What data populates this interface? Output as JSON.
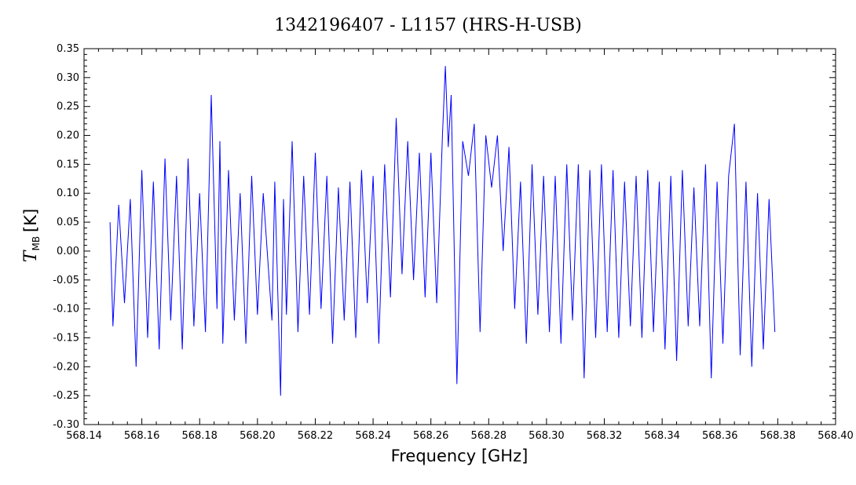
{
  "chart_data": {
    "type": "line",
    "title": "1342196407 - L1157 (HRS-H-USB)",
    "xlabel": "Frequency [GHz]",
    "ylabel": {
      "symbol": "T",
      "subscript": "MB",
      "unit": "[K]"
    },
    "xlim": [
      568.14,
      568.4
    ],
    "ylim": [
      -0.3,
      0.35
    ],
    "xticks": [
      568.14,
      568.16,
      568.18,
      568.2,
      568.22,
      568.24,
      568.26,
      568.28,
      568.3,
      568.32,
      568.34,
      568.36,
      568.38,
      568.4
    ],
    "xtick_labels": [
      "568.14",
      "568.16",
      "568.18",
      "568.20",
      "568.22",
      "568.24",
      "568.26",
      "568.28",
      "568.30",
      "568.32",
      "568.34",
      "568.36",
      "568.38",
      "568.40"
    ],
    "yticks": [
      -0.3,
      -0.25,
      -0.2,
      -0.15,
      -0.1,
      -0.05,
      0.0,
      0.05,
      0.1,
      0.15,
      0.2,
      0.25,
      0.3,
      0.35
    ],
    "ytick_labels": [
      "-0.30",
      "-0.25",
      "-0.20",
      "-0.15",
      "-0.10",
      "-0.05",
      "0.00",
      "0.05",
      "0.10",
      "0.15",
      "0.20",
      "0.25",
      "0.30",
      "0.35"
    ],
    "grid": false,
    "line_color": "#0000ff",
    "series": [
      {
        "x": [
          568.149,
          568.15,
          568.152,
          568.154,
          568.156,
          568.158,
          568.16,
          568.162,
          568.164,
          568.166,
          568.168,
          568.17,
          568.172,
          568.174,
          568.176,
          568.178,
          568.18,
          568.182,
          568.184,
          568.186,
          568.187,
          568.188,
          568.19,
          568.192,
          568.194,
          568.196,
          568.198,
          568.2,
          568.202,
          568.205,
          568.206,
          568.208,
          568.209,
          568.21,
          568.212,
          568.214,
          568.216,
          568.218,
          568.22,
          568.222,
          568.224,
          568.226,
          568.228,
          568.23,
          568.232,
          568.234,
          568.236,
          568.238,
          568.24,
          568.242,
          568.244,
          568.246,
          568.248,
          568.25,
          568.252,
          568.254,
          568.256,
          568.258,
          568.26,
          568.262,
          568.264,
          568.265,
          568.266,
          568.267,
          568.269,
          568.271,
          568.273,
          568.275,
          568.277,
          568.279,
          568.281,
          568.283,
          568.285,
          568.287,
          568.289,
          568.291,
          568.293,
          568.295,
          568.297,
          568.299,
          568.301,
          568.303,
          568.305,
          568.307,
          568.309,
          568.311,
          568.313,
          568.315,
          568.317,
          568.319,
          568.321,
          568.323,
          568.325,
          568.327,
          568.329,
          568.331,
          568.333,
          568.335,
          568.337,
          568.339,
          568.341,
          568.343,
          568.345,
          568.347,
          568.349,
          568.351,
          568.353,
          568.355,
          568.357,
          568.359,
          568.361,
          568.363,
          568.365,
          568.367,
          568.369,
          568.371,
          568.373,
          568.375,
          568.377,
          568.379
        ],
        "y": [
          0.05,
          -0.13,
          0.08,
          -0.09,
          0.09,
          -0.2,
          0.14,
          -0.15,
          0.12,
          -0.17,
          0.16,
          -0.12,
          0.13,
          -0.17,
          0.16,
          -0.13,
          0.1,
          -0.14,
          0.27,
          -0.1,
          0.19,
          -0.16,
          0.14,
          -0.12,
          0.1,
          -0.16,
          0.13,
          -0.11,
          0.1,
          -0.12,
          0.12,
          -0.25,
          0.09,
          -0.11,
          0.19,
          -0.14,
          0.13,
          -0.11,
          0.17,
          -0.1,
          0.13,
          -0.16,
          0.11,
          -0.12,
          0.12,
          -0.15,
          0.14,
          -0.09,
          0.13,
          -0.16,
          0.15,
          -0.08,
          0.23,
          -0.04,
          0.19,
          -0.05,
          0.17,
          -0.08,
          0.17,
          -0.09,
          0.2,
          0.32,
          0.18,
          0.27,
          -0.23,
          0.19,
          0.13,
          0.22,
          -0.14,
          0.2,
          0.11,
          0.2,
          0.0,
          0.18,
          -0.1,
          0.12,
          -0.16,
          0.15,
          -0.11,
          0.13,
          -0.14,
          0.13,
          -0.16,
          0.15,
          -0.12,
          0.15,
          -0.22,
          0.14,
          -0.15,
          0.15,
          -0.14,
          0.14,
          -0.15,
          0.12,
          -0.13,
          0.13,
          -0.15,
          0.14,
          -0.14,
          0.12,
          -0.17,
          0.13,
          -0.19,
          0.14,
          -0.13,
          0.11,
          -0.13,
          0.15,
          -0.22,
          0.12,
          -0.16,
          0.13,
          0.22,
          -0.18,
          0.12,
          -0.2,
          0.1,
          -0.17,
          0.09,
          -0.14
        ]
      }
    ]
  }
}
